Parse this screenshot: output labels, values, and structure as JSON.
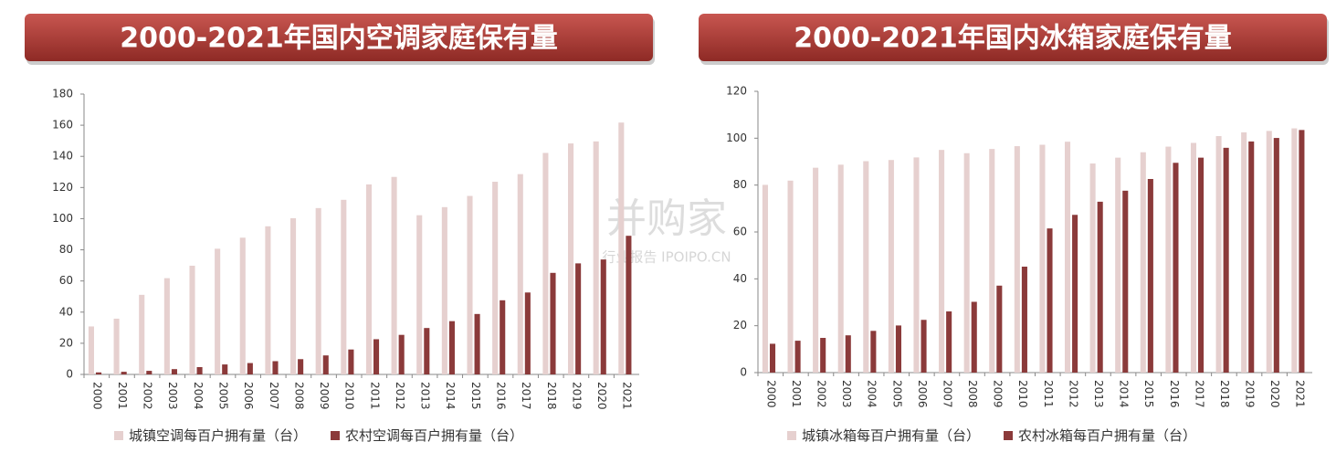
{
  "chart_data": [
    {
      "type": "bar",
      "title": "2000-2021年国内空调家庭保有量",
      "categories": [
        "2000",
        "2001",
        "2002",
        "2003",
        "2004",
        "2005",
        "2006",
        "2007",
        "2008",
        "2009",
        "2010",
        "2011",
        "2012",
        "2013",
        "2014",
        "2015",
        "2016",
        "2017",
        "2018",
        "2019",
        "2020",
        "2021"
      ],
      "series": [
        {
          "name": "城镇空调每百户拥有量（台）",
          "color": "#e6d0cf",
          "values": [
            30.8,
            35.8,
            51.1,
            61.8,
            69.8,
            80.7,
            87.8,
            95.1,
            100.3,
            106.8,
            112.1,
            122,
            126.8,
            102.2,
            107.4,
            114.6,
            123.7,
            128.6,
            142.2,
            148.3,
            149.6,
            161.7
          ]
        },
        {
          "name": "农村空调每百户拥有量（台）",
          "color": "#8b3a3a",
          "values": [
            1.3,
            1.7,
            2.3,
            3.4,
            4.7,
            6.4,
            7.3,
            8.5,
            9.8,
            12.2,
            16,
            22.6,
            25.4,
            29.8,
            34.2,
            38.8,
            47.6,
            52.6,
            65.2,
            71.3,
            73.8,
            89
          ]
        }
      ],
      "ylim": [
        0,
        180
      ],
      "yticks": [
        0,
        20,
        40,
        60,
        80,
        100,
        120,
        140,
        160,
        180
      ]
    },
    {
      "type": "bar",
      "title": "2000-2021年国内冰箱家庭保有量",
      "categories": [
        "2000",
        "2001",
        "2002",
        "2003",
        "2004",
        "2005",
        "2006",
        "2007",
        "2008",
        "2009",
        "2010",
        "2011",
        "2012",
        "2013",
        "2014",
        "2015",
        "2016",
        "2017",
        "2018",
        "2019",
        "2020",
        "2021"
      ],
      "series": [
        {
          "name": "城镇冰箱每百户拥有量（台）",
          "color": "#e6d0cf",
          "values": [
            80.1,
            81.9,
            87.4,
            88.7,
            90.2,
            90.7,
            91.8,
            95,
            93.6,
            95.4,
            96.6,
            97.2,
            98.5,
            89.2,
            91.7,
            94,
            96.4,
            98,
            100.9,
            102.5,
            103.1,
            104.2
          ]
        },
        {
          "name": "农村冰箱每百户拥有量（台）",
          "color": "#8b3a3a",
          "values": [
            12.3,
            13.6,
            14.8,
            15.9,
            17.8,
            20.1,
            22.5,
            26.1,
            30.2,
            37.1,
            45.2,
            61.5,
            67.3,
            72.9,
            77.6,
            82.6,
            89.5,
            91.7,
            95.9,
            98.6,
            100.1,
            103.5
          ]
        }
      ],
      "ylim": [
        0,
        120
      ],
      "yticks": [
        0,
        20,
        40,
        60,
        80,
        100,
        120
      ]
    }
  ],
  "watermark": {
    "brand": "并购家",
    "caption": "行业报告 IPOIPO.CN"
  }
}
